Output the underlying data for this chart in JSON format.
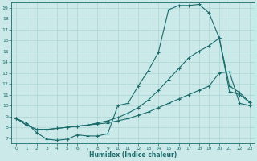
{
  "xlabel": "Humidex (Indice chaleur)",
  "xlim": [
    -0.5,
    23.5
  ],
  "ylim": [
    6.5,
    19.5
  ],
  "xticks": [
    0,
    1,
    2,
    3,
    4,
    5,
    6,
    7,
    8,
    9,
    10,
    11,
    12,
    13,
    14,
    15,
    16,
    17,
    18,
    19,
    20,
    21,
    22,
    23
  ],
  "yticks": [
    7,
    8,
    9,
    10,
    11,
    12,
    13,
    14,
    15,
    16,
    17,
    18,
    19
  ],
  "background_color": "#cce9e9",
  "grid_color": "#aad4d4",
  "line_color": "#1a6b6b",
  "line1_x": [
    0,
    1,
    2,
    3,
    4,
    5,
    6,
    7,
    8,
    9,
    10,
    11,
    12,
    13,
    14,
    15,
    16,
    17,
    18,
    19,
    20,
    21,
    22,
    23
  ],
  "line1_y": [
    8.8,
    8.4,
    7.5,
    6.9,
    6.8,
    6.9,
    7.3,
    7.2,
    7.2,
    7.4,
    10.0,
    10.2,
    11.8,
    13.2,
    14.9,
    18.8,
    19.2,
    19.2,
    19.3,
    18.5,
    16.2,
    11.3,
    11.0,
    10.3
  ],
  "line2_x": [
    0,
    1,
    2,
    3,
    4,
    5,
    6,
    7,
    8,
    9,
    10,
    11,
    12,
    13,
    14,
    15,
    16,
    17,
    18,
    19,
    20,
    21,
    22,
    23
  ],
  "line2_y": [
    8.8,
    8.2,
    7.8,
    7.8,
    7.9,
    8.0,
    8.1,
    8.2,
    8.4,
    8.6,
    8.9,
    9.3,
    9.8,
    10.5,
    11.4,
    12.4,
    13.4,
    14.4,
    15.0,
    15.5,
    16.2,
    11.8,
    11.2,
    10.3
  ],
  "line3_x": [
    0,
    1,
    2,
    3,
    4,
    5,
    6,
    7,
    8,
    9,
    10,
    11,
    12,
    13,
    14,
    15,
    16,
    17,
    18,
    19,
    20,
    21,
    22,
    23
  ],
  "line3_y": [
    8.8,
    8.2,
    7.8,
    7.8,
    7.9,
    8.0,
    8.1,
    8.2,
    8.3,
    8.4,
    8.6,
    8.8,
    9.1,
    9.4,
    9.8,
    10.2,
    10.6,
    11.0,
    11.4,
    11.8,
    13.0,
    13.1,
    10.2,
    10.0
  ]
}
